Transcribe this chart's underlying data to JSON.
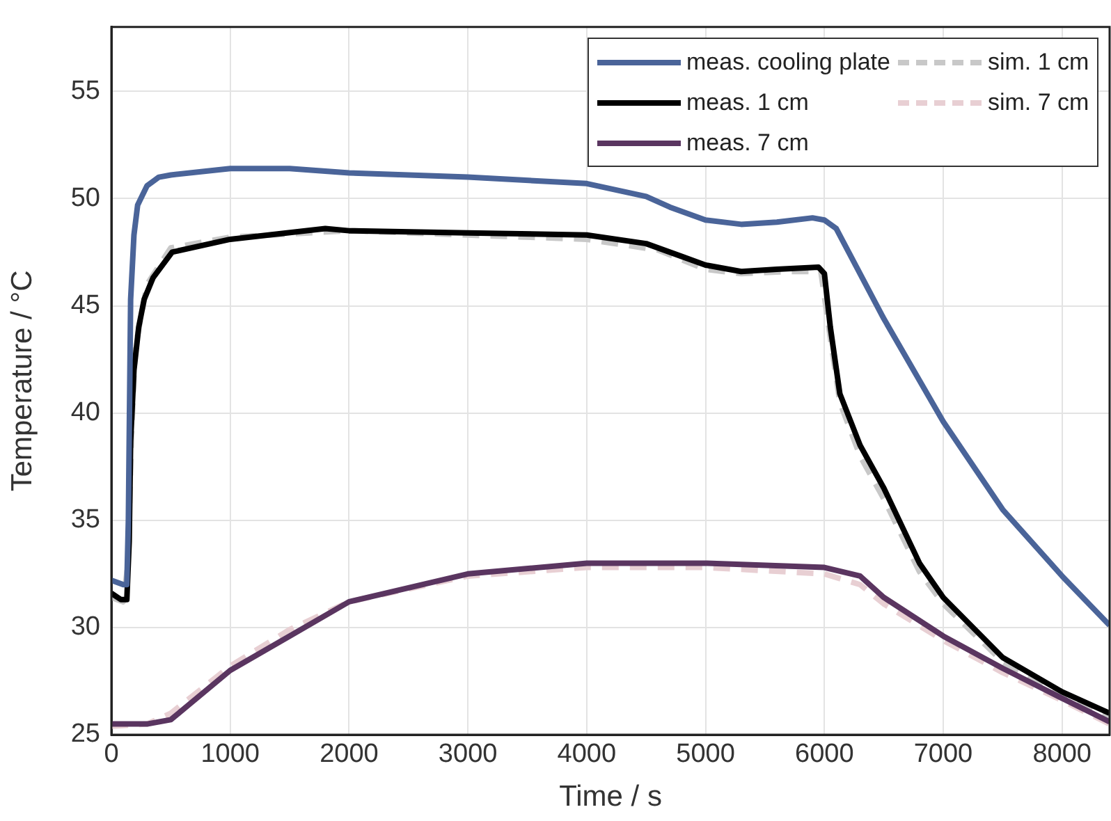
{
  "chart_data": {
    "type": "line",
    "xlabel": "Time / s",
    "ylabel": "Temperature / °C",
    "xlim": [
      0,
      8400
    ],
    "xticks": [
      0,
      1000,
      2000,
      3000,
      4000,
      5000,
      6000,
      7000,
      8000
    ],
    "ylim": [
      25,
      58
    ],
    "yticks": [
      25,
      30,
      35,
      40,
      45,
      50,
      55
    ],
    "grid": true,
    "legend": "top right",
    "marker": "none",
    "series": [
      {
        "name": "meas. cooling plate",
        "color": "#4a6499",
        "line_style": "solid",
        "x": [
          0,
          100,
          130,
          143,
          162,
          190,
          221,
          300,
          400,
          500,
          1000,
          1500,
          2000,
          3000,
          4000,
          4500,
          4700,
          5000,
          5300,
          5600,
          5900,
          6000,
          6100,
          6500,
          7000,
          7500,
          8000,
          8400
        ],
        "values": [
          32.2,
          32.0,
          32.0,
          35,
          45.3,
          48.3,
          49.7,
          50.6,
          51.0,
          51.1,
          51.4,
          51.4,
          51.2,
          51.0,
          50.7,
          50.1,
          49.6,
          49.0,
          48.8,
          48.9,
          49.1,
          49.0,
          48.6,
          44.4,
          39.6,
          35.5,
          32.4,
          30.1
        ]
      },
      {
        "name": "meas. 1 cm",
        "color": "#000000",
        "line_style": "solid",
        "x": [
          0,
          80,
          130,
          150,
          162,
          190,
          230,
          276,
          350,
          511,
          1000,
          1800,
          2000,
          3000,
          4000,
          4500,
          4800,
          5000,
          5300,
          5600,
          5950,
          6000,
          6050,
          6130,
          6300,
          6500,
          6800,
          7000,
          7500,
          8000,
          8400
        ],
        "values": [
          31.6,
          31.3,
          31.3,
          34,
          38.7,
          42,
          44,
          45.3,
          46.3,
          47.5,
          48.1,
          48.6,
          48.5,
          48.4,
          48.3,
          47.9,
          47.3,
          46.9,
          46.6,
          46.7,
          46.8,
          46.5,
          44.0,
          40.9,
          38.5,
          36.5,
          33.0,
          31.4,
          28.6,
          27.0,
          26.0
        ]
      },
      {
        "name": "meas. 7 cm",
        "color": "#5a3560",
        "line_style": "solid",
        "x": [
          0,
          300,
          500,
          1000,
          1500,
          2000,
          3000,
          4000,
          5000,
          6000,
          6300,
          6500,
          7000,
          7500,
          8000,
          8400
        ],
        "values": [
          25.5,
          25.5,
          25.7,
          28.0,
          29.6,
          31.2,
          32.5,
          33.0,
          33.0,
          32.8,
          32.4,
          31.4,
          29.6,
          28.1,
          26.7,
          25.6
        ]
      },
      {
        "name": "sim. 1 cm",
        "color": "#c8c8c8",
        "line_style": "dashed",
        "x": [
          0,
          100,
          140,
          170,
          200,
          300,
          500,
          1000,
          2000,
          3000,
          4000,
          4600,
          5000,
          5300,
          5700,
          5970,
          6050,
          6130,
          6300,
          6500,
          6800,
          7000,
          7500,
          8000,
          8400
        ],
        "values": [
          31.4,
          31.2,
          33,
          39,
          43,
          46,
          47.7,
          48.2,
          48.5,
          48.3,
          48.1,
          47.6,
          46.7,
          46.5,
          46.6,
          46.6,
          43.5,
          40.5,
          38,
          36,
          32.6,
          31.1,
          28.4,
          26.8,
          25.8
        ]
      },
      {
        "name": "sim. 7 cm",
        "color": "#e8cfd3",
        "line_style": "dashed",
        "x": [
          0,
          300,
          500,
          1000,
          1500,
          2000,
          3000,
          4000,
          5000,
          6000,
          6300,
          6500,
          7000,
          7500,
          8000,
          8400
        ],
        "values": [
          25.4,
          25.5,
          26.0,
          28.2,
          29.9,
          31.2,
          32.4,
          32.8,
          32.8,
          32.5,
          32.0,
          31.1,
          29.4,
          27.9,
          26.6,
          25.5
        ]
      }
    ]
  }
}
